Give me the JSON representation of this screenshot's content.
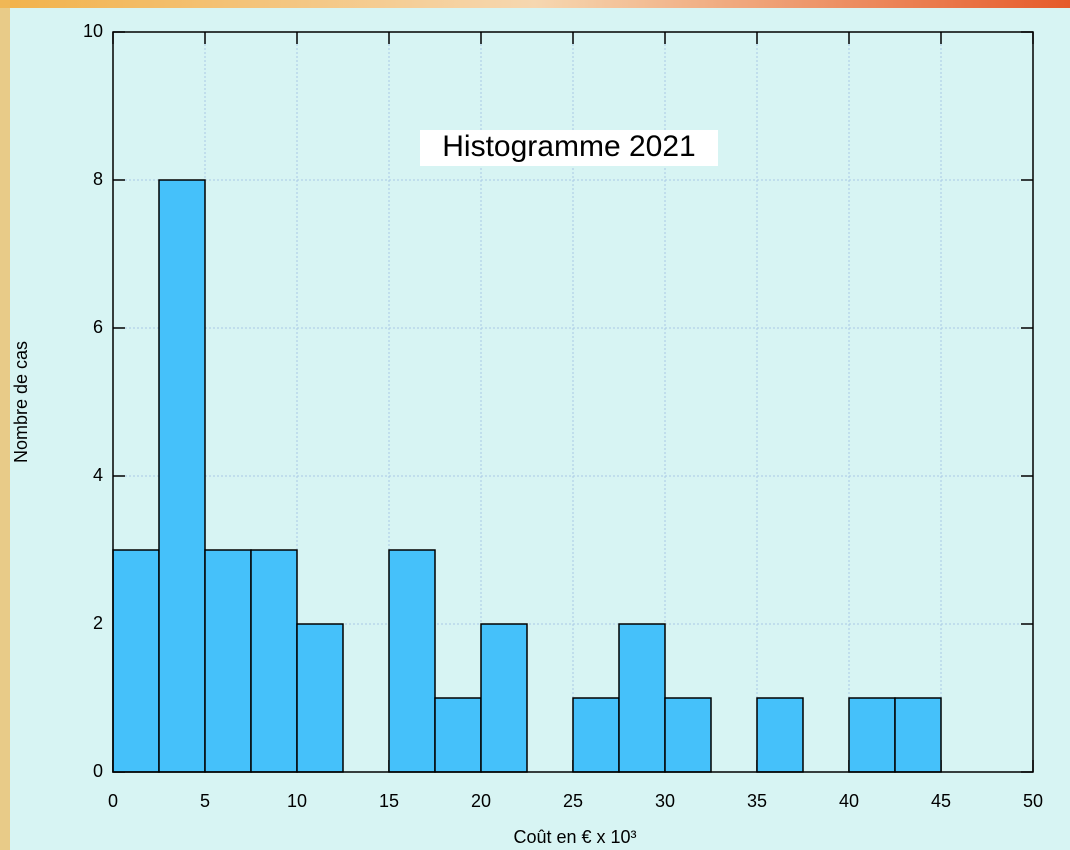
{
  "chart_data": {
    "type": "histogram",
    "title": "Histogramme 2021",
    "xlabel": "Coût en € x 10³",
    "ylabel": "Nombre de cas",
    "bins": [
      0,
      2.5,
      5,
      7.5,
      10,
      12.5,
      15,
      17.5,
      20,
      22.5,
      25,
      27.5,
      30,
      32.5,
      35,
      37.5,
      40,
      42.5,
      45,
      47.5,
      50
    ],
    "values": [
      3,
      8,
      3,
      3,
      2,
      0,
      3,
      1,
      2,
      0,
      1,
      2,
      1,
      0,
      1,
      0,
      1,
      1,
      0,
      0
    ],
    "color": "#45c1fa",
    "xlim": [
      0,
      50
    ],
    "xticks": [
      0,
      5,
      10,
      15,
      20,
      25,
      30,
      35,
      40,
      45,
      50
    ],
    "ylim": [
      0,
      10
    ],
    "yticks": [
      0,
      2,
      4,
      6,
      8,
      10
    ],
    "grid": true
  }
}
